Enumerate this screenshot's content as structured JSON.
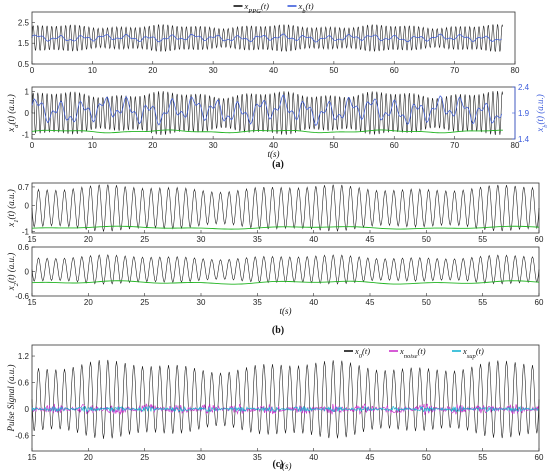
{
  "captions": {
    "a": "(a)",
    "b": "(b)",
    "c": "(c)"
  },
  "colors": {
    "black": "#111111",
    "blue": "#3b5bdb",
    "green": "#22b422",
    "magenta": "#cc33cc",
    "cyan": "#19b4d2",
    "purple": "#8833ff"
  },
  "chart_data": [
    {
      "id": "a1",
      "type": "line",
      "title": "",
      "xlabel": "",
      "ylabel": "",
      "xlim": [
        0,
        80
      ],
      "ylim": [
        0.5,
        3.0
      ],
      "xticks": [
        0,
        10,
        20,
        30,
        40,
        50,
        60,
        70,
        80
      ],
      "yticks": [
        0.5,
        1.5,
        2.5
      ],
      "legend": {
        "position": "top-center",
        "entries": [
          "x_PPG(t)",
          "x_b(t)"
        ]
      },
      "series": [
        {
          "name": "x_PPG(t)",
          "color": "black",
          "kind": "oscillation",
          "x_range": [
            0,
            78
          ],
          "rate_hz": 1.3,
          "center": 1.75,
          "amplitude": 0.55
        },
        {
          "name": "x_b(t)",
          "color": "blue",
          "kind": "baseline",
          "x_range": [
            0,
            78
          ],
          "mean": 1.75,
          "amplitude": 0.2
        }
      ]
    },
    {
      "id": "a2",
      "type": "line",
      "title": "",
      "xlabel": "t(s)",
      "ylabel": "x_d(t) (a.u.)",
      "ylabel_right": "x_b(t) (a.u.)",
      "xlim": [
        0,
        80
      ],
      "ylim": [
        -1.2,
        1.2
      ],
      "y2lim": [
        1.4,
        2.4
      ],
      "xticks": [
        0,
        10,
        20,
        30,
        40,
        50,
        60,
        70,
        80
      ],
      "yticks": [
        -1,
        0,
        1
      ],
      "y2ticks": [
        1.4,
        1.9,
        2.4
      ],
      "series": [
        {
          "name": "x_d(t)",
          "color": "black",
          "kind": "oscillation",
          "x_range": [
            0,
            78
          ],
          "rate_hz": 1.3,
          "center": 0,
          "amplitude": 0.85
        },
        {
          "name": "lower envelope",
          "color": "green",
          "kind": "envelope",
          "x_range": [
            0,
            78
          ],
          "level": -0.85
        },
        {
          "name": "x_b(t)",
          "color": "blue",
          "kind": "baseline",
          "axis": "right",
          "x_range": [
            0,
            78
          ],
          "mean": 1.95,
          "amplitude": 0.3
        }
      ]
    },
    {
      "id": "b1",
      "type": "line",
      "title": "",
      "xlabel": "",
      "ylabel": "x_1(t) (a.u.)",
      "xlim": [
        15,
        60
      ],
      "ylim": [
        -1.05,
        0.85
      ],
      "xticks": [
        15,
        20,
        25,
        30,
        35,
        40,
        45,
        50,
        55,
        60
      ],
      "yticks": [
        -1,
        0,
        0.7
      ],
      "series": [
        {
          "name": "x_1(t)",
          "color": "black",
          "kind": "oscillation",
          "x_range": [
            15,
            60
          ],
          "rate_hz": 1.3,
          "center": -0.1,
          "amplitude": 0.75
        },
        {
          "name": "lower envelope",
          "color": "green",
          "kind": "envelope",
          "x_range": [
            15,
            60
          ],
          "level": -0.85
        }
      ]
    },
    {
      "id": "b2",
      "type": "line",
      "title": "",
      "xlabel": "t(s)",
      "ylabel": "x_2(t) (a.u.)",
      "xlim": [
        15,
        60
      ],
      "ylim": [
        -0.6,
        0.6
      ],
      "xticks": [
        15,
        20,
        25,
        30,
        35,
        40,
        45,
        50,
        55,
        60
      ],
      "yticks": [
        -0.6,
        0,
        0.6
      ],
      "series": [
        {
          "name": "x_2(t)",
          "color": "black",
          "kind": "oscillation",
          "x_range": [
            15,
            60
          ],
          "rate_hz": 1.3,
          "center": 0.05,
          "amplitude": 0.3
        },
        {
          "name": "lower envelope",
          "color": "green",
          "kind": "envelope",
          "x_range": [
            15,
            60
          ],
          "level": -0.27
        }
      ]
    },
    {
      "id": "c1",
      "type": "line",
      "title": "",
      "xlabel": "t(s)",
      "ylabel": "Pulse Signal (a.u.)",
      "xlim": [
        15,
        60
      ],
      "ylim": [
        -0.95,
        1.45
      ],
      "xticks": [
        15,
        20,
        25,
        30,
        35,
        40,
        45,
        50,
        55,
        60
      ],
      "yticks": [
        -0.6,
        0,
        0.6,
        1.2
      ],
      "legend": {
        "position": "top-right",
        "entries": [
          "x_0(t)",
          "x_noise(t)",
          "x_sup(t)"
        ]
      },
      "series": [
        {
          "name": "x_0(t)",
          "color": "black",
          "kind": "oscillation",
          "x_range": [
            15,
            60
          ],
          "rate_hz": 1.3,
          "center": 0.22,
          "amplitude": 0.75
        },
        {
          "name": "x_noise(t)",
          "color": "magenta",
          "kind": "noise",
          "x_range": [
            15,
            60
          ],
          "amplitude": 0.08
        },
        {
          "name": "x_sup(t)",
          "color": "cyan",
          "kind": "noise",
          "x_range": [
            15,
            60
          ],
          "amplitude": 0.04
        }
      ]
    }
  ]
}
